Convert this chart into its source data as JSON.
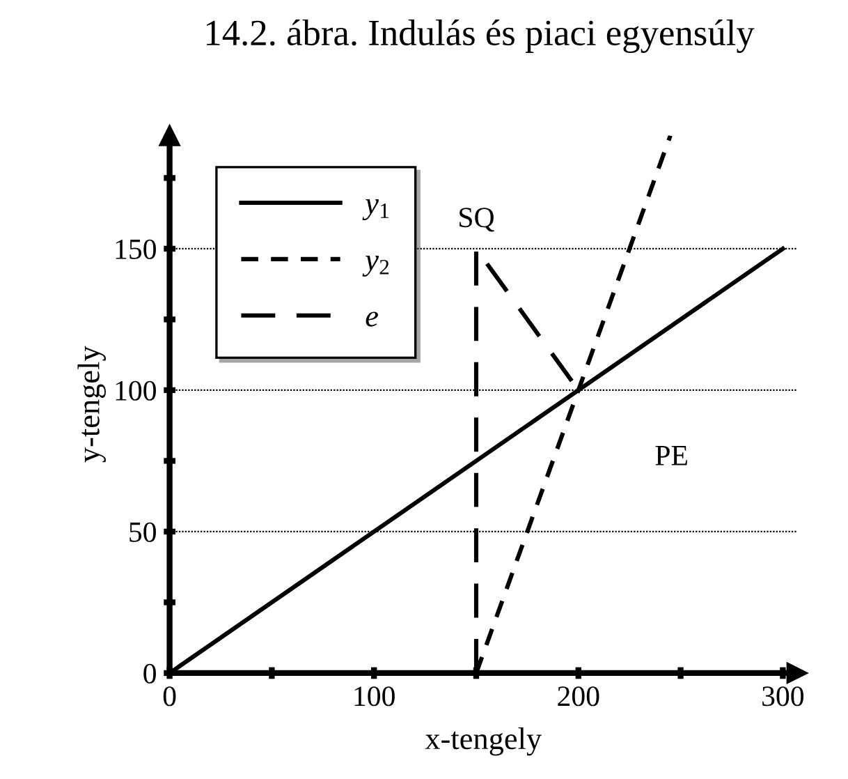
{
  "chart_data": {
    "type": "line",
    "title": "14.2. ábra. Indulás és piaci egyensúly",
    "xlabel": "x-tengely",
    "ylabel": "y-tengely",
    "series": [
      {
        "name": "y$_{1}$",
        "color": "#000000",
        "line_style": "solid",
        "x": [
          0,
          300
        ],
        "values": [
          0,
          150
        ]
      },
      {
        "name": "y$_{2}$",
        "color": "#000000",
        "line_style": "dotted",
        "x": [
          150,
          245
        ],
        "values": [
          0,
          190
        ]
      },
      {
        "name": "e",
        "color": "#000000",
        "line_style": "dashed",
        "x": [
          150,
          150,
          200
        ],
        "values": [
          0,
          150,
          100
        ]
      }
    ],
    "annotations": [
      {
        "text": "SQ",
        "x": 150,
        "y": 150
      },
      "PE"
    ],
    "xlim": [
      0,
      307
    ],
    "ylim": [
      0,
      190
    ],
    "xticks": [
      0,
      {
        "value": 50,
        "label": null
      },
      100,
      {
        "value": 150,
        "label": null
      },
      200,
      {
        "value": 250,
        "label": null
      },
      300
    ],
    "yticks": [
      0,
      {
        "value": 25,
        "label": null
      },
      50,
      {
        "value": 75,
        "label": null
      },
      100,
      {
        "value": 125,
        "label": null
      },
      150,
      {
        "value": 175,
        "label": null
      }
    ],
    "grid": "y",
    "legend": "top left",
    "marker": "none"
  }
}
